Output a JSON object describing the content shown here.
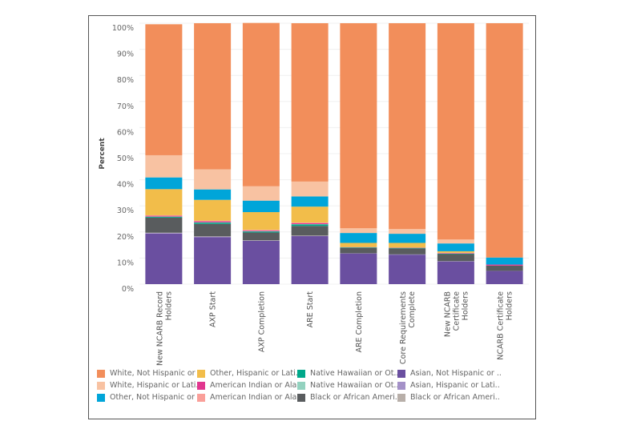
{
  "chart_data": {
    "type": "bar",
    "stacked": true,
    "normalized": true,
    "ylabel": "Percent",
    "ylim": [
      0,
      100
    ],
    "yticks": [
      "0%",
      "10%",
      "20%",
      "30%",
      "40%",
      "50%",
      "60%",
      "70%",
      "80%",
      "90%",
      "100%"
    ],
    "grid": true,
    "legend_position": "bottom",
    "categories": [
      "New NCARB Record Holders",
      "AXP Start",
      "AXP Completion",
      "ARE Start",
      "ARE Completion",
      "Core Requirements Complete",
      "New NCARB Certificate Holders",
      "NCARB Certificate Holders"
    ],
    "series": [
      {
        "name": "Asian, Not Hispanic or ..",
        "color": "#6a4fa0",
        "values": [
          19.4,
          18.0,
          16.6,
          18.4,
          11.7,
          11.3,
          8.7,
          5.1
        ]
      },
      {
        "name": "Asian, Hispanic or Lati..",
        "color": "#a491c8",
        "values": [
          0.2,
          0.2,
          0.1,
          0.1,
          0.1,
          0.1,
          0.1,
          0.0
        ]
      },
      {
        "name": "Black or African Ameri..",
        "color": "#b8afa9",
        "values": [
          0.1,
          0.1,
          0.1,
          0.1,
          0.0,
          0.0,
          0.0,
          0.0
        ]
      },
      {
        "name": "Black or African Ameri..",
        "color": "#595c5e",
        "values": [
          5.8,
          4.8,
          3.0,
          3.7,
          2.1,
          2.3,
          2.7,
          2.0
        ]
      },
      {
        "name": "Native Hawaiian or Ot..",
        "color": "#00a88a",
        "values": [
          0.3,
          0.5,
          0.4,
          0.6,
          0.2,
          0.2,
          0.2,
          0.0
        ]
      },
      {
        "name": "Native Hawaiian or Ot..",
        "color": "#93d2bf",
        "values": [
          0.1,
          0.1,
          0.1,
          0.1,
          0.0,
          0.0,
          0.0,
          0.0
        ]
      },
      {
        "name": "American Indian or Ala..",
        "color": "#e1368f",
        "values": [
          0.3,
          0.4,
          0.3,
          0.4,
          0.1,
          0.1,
          0.2,
          0.4
        ]
      },
      {
        "name": "American Indian or Ala..",
        "color": "#fa9f99",
        "values": [
          0.2,
          0.2,
          0.2,
          0.2,
          0.0,
          0.0,
          0.1,
          0.0
        ]
      },
      {
        "name": "Other, Hispanic or Lati..",
        "color": "#f2bd4a",
        "values": [
          10.0,
          8.0,
          6.8,
          6.1,
          1.6,
          1.8,
          0.6,
          0.0
        ]
      },
      {
        "name": "Other, Not Hispanic or ..",
        "color": "#00a5d9",
        "values": [
          4.5,
          4.0,
          4.4,
          3.9,
          3.8,
          3.5,
          3.0,
          2.7
        ]
      },
      {
        "name": "White, Hispanic or Lati..",
        "color": "#f8c2a2",
        "values": [
          8.5,
          7.7,
          5.5,
          5.7,
          1.8,
          1.8,
          1.5,
          0.0
        ]
      },
      {
        "name": "White, Not Hispanic or ..",
        "color": "#f28e5b",
        "values": [
          50.2,
          56.0,
          62.6,
          60.7,
          78.6,
          78.9,
          82.9,
          89.8
        ]
      }
    ]
  },
  "legend": [
    {
      "label": "White, Not Hispanic or ..",
      "color": "#f28e5b"
    },
    {
      "label": "White, Hispanic or Lati..",
      "color": "#f8c2a2"
    },
    {
      "label": "Other, Not Hispanic or ..",
      "color": "#00a5d9"
    },
    {
      "label": "Other, Hispanic or Lati..",
      "color": "#f2bd4a"
    },
    {
      "label": "American Indian or Ala..",
      "color": "#e1368f"
    },
    {
      "label": "American Indian or Ala..",
      "color": "#fa9f99"
    },
    {
      "label": "Native Hawaiian or Ot..",
      "color": "#00a88a"
    },
    {
      "label": "Native Hawaiian or Ot..",
      "color": "#93d2bf"
    },
    {
      "label": "Black or African Ameri..",
      "color": "#595c5e"
    },
    {
      "label": "Asian, Not Hispanic or ..",
      "color": "#6a4fa0"
    },
    {
      "label": "Asian, Hispanic or Lati..",
      "color": "#a491c8"
    },
    {
      "label": "Black or African Ameri..",
      "color": "#b8afa9"
    }
  ]
}
